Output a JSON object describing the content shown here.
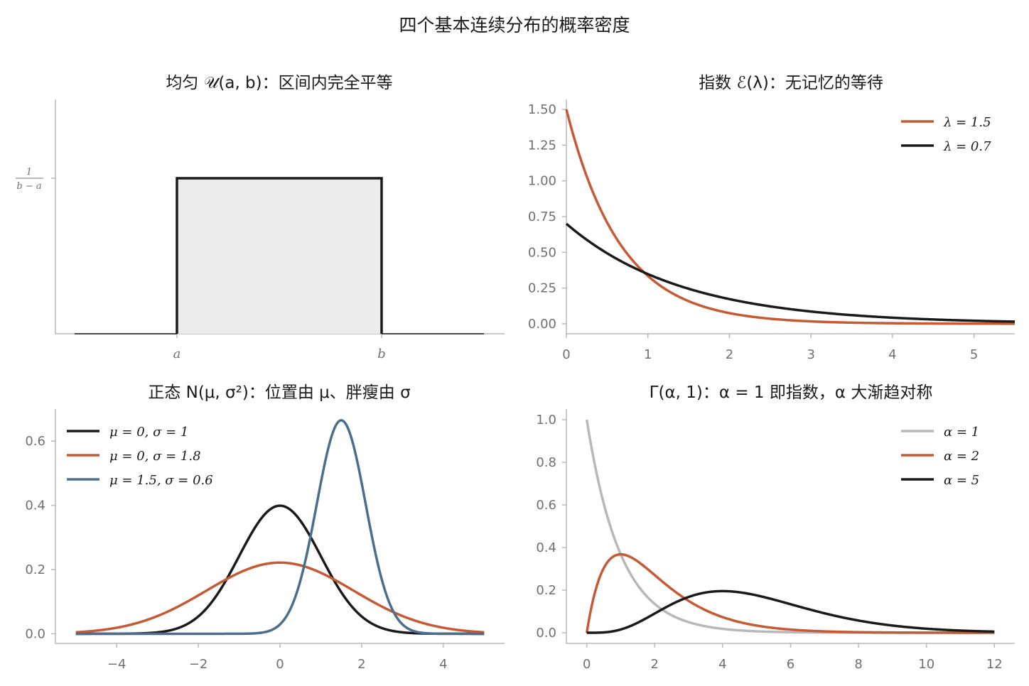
{
  "suptitle": "四个基本连续分布的概率密度",
  "colors": {
    "black": "#1a1a1a",
    "orange": "#c55a35",
    "blue": "#4a6f8e",
    "gray": "#b8b8b8",
    "fill": "#ebebeb"
  },
  "chart_data": [
    {
      "type": "area",
      "title": "均匀 𝒰(a, b)：区间内完全平等",
      "x_ticks": [
        "a",
        "b"
      ],
      "y_ticks": [
        "1/(b − a)"
      ],
      "series": [
        {
          "segments": [
            [
              "left",
              0
            ],
            [
              "a",
              0
            ],
            [
              "a",
              "1/(b−a)"
            ],
            [
              "b",
              "1/(b−a)"
            ],
            [
              "b",
              0
            ],
            [
              "right",
              0
            ]
          ]
        }
      ],
      "grid": false
    },
    {
      "type": "line",
      "title": "指数 ℰ(λ)：无记忆的等待",
      "xlim": [
        0,
        5.5
      ],
      "ylim": [
        -0.07,
        1.57
      ],
      "x_ticks": [
        0,
        1,
        2,
        3,
        4,
        5
      ],
      "y_ticks": [
        "0.00",
        "0.25",
        "0.50",
        "0.75",
        "1.00",
        "1.25",
        "1.50"
      ],
      "distribution": "exponential",
      "series": [
        {
          "name": "λ = 1.5",
          "lambda": 1.5,
          "color": "#c55a35"
        },
        {
          "name": "λ = 0.7",
          "lambda": 0.7,
          "color": "#1a1a1a"
        }
      ],
      "legend": "top-right",
      "grid": false
    },
    {
      "type": "line",
      "title": "正态 N(μ, σ²)：位置由 μ、胖瘦由 σ",
      "xlim": [
        -5.5,
        5.5
      ],
      "ylim": [
        -0.03,
        0.7
      ],
      "x_ticks": [
        "−4",
        "−2",
        "0",
        "2",
        "4"
      ],
      "x_tick_values": [
        -4,
        -2,
        0,
        2,
        4
      ],
      "y_ticks": [
        "0.0",
        "0.2",
        "0.4",
        "0.6"
      ],
      "y_tick_values": [
        0,
        0.2,
        0.4,
        0.6
      ],
      "distribution": "normal",
      "x_range": [
        -5,
        5
      ],
      "series": [
        {
          "name": "μ = 0,  σ = 1",
          "mu": 0,
          "sigma": 1,
          "color": "#1a1a1a"
        },
        {
          "name": "μ = 0,  σ = 1.8",
          "mu": 0,
          "sigma": 1.8,
          "color": "#c55a35"
        },
        {
          "name": "μ = 1.5,  σ = 0.6",
          "mu": 1.5,
          "sigma": 0.6,
          "color": "#4a6f8e"
        }
      ],
      "legend": "top-left",
      "grid": false
    },
    {
      "type": "line",
      "title": "Γ(α, 1)：α = 1 即指数，α 大渐趋对称",
      "xlim": [
        -0.6,
        12.6
      ],
      "ylim": [
        -0.05,
        1.05
      ],
      "x_ticks": [
        0,
        2,
        4,
        6,
        8,
        10,
        12
      ],
      "y_ticks": [
        "0.0",
        "0.2",
        "0.4",
        "0.6",
        "0.8",
        "1.0"
      ],
      "y_tick_values": [
        0,
        0.2,
        0.4,
        0.6,
        0.8,
        1.0
      ],
      "distribution": "gamma",
      "x_range": [
        0,
        12
      ],
      "series": [
        {
          "name": "α = 1",
          "alpha": 1,
          "color": "#b8b8b8"
        },
        {
          "name": "α = 2",
          "alpha": 2,
          "color": "#c55a35"
        },
        {
          "name": "α = 5",
          "alpha": 5,
          "color": "#1a1a1a"
        }
      ],
      "legend": "top-right",
      "grid": false
    }
  ]
}
